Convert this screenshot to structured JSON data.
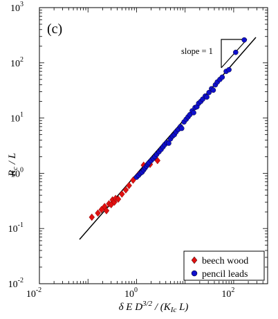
{
  "chart_data": {
    "type": "scatter",
    "panel_label": "(c)",
    "xscale": "log",
    "yscale": "log",
    "xlim": [
      0.01,
      500
    ],
    "ylim": [
      0.01,
      1000
    ],
    "x_ticks": [
      {
        "value": 0.01,
        "base": "10",
        "exp": "-2"
      },
      {
        "value": 1,
        "base": "10",
        "exp": "0"
      },
      {
        "value": 100,
        "base": "10",
        "exp": "2"
      }
    ],
    "y_ticks": [
      {
        "value": 0.01,
        "base": "10",
        "exp": "-2"
      },
      {
        "value": 0.1,
        "base": "10",
        "exp": "-1"
      },
      {
        "value": 1,
        "base": "10",
        "exp": "0"
      },
      {
        "value": 10,
        "base": "10",
        "exp": "1"
      },
      {
        "value": 100,
        "base": "10",
        "exp": "2"
      },
      {
        "value": 1000,
        "base": "10",
        "exp": "3"
      }
    ],
    "slope_annotation": "slope = 1",
    "legend_position": "bottom-right",
    "series": [
      {
        "name": "beech wood",
        "marker": "diamond",
        "color": "#e01010",
        "points": [
          [
            0.12,
            0.16
          ],
          [
            0.16,
            0.19
          ],
          [
            0.19,
            0.22
          ],
          [
            0.22,
            0.25
          ],
          [
            0.24,
            0.21
          ],
          [
            0.27,
            0.28
          ],
          [
            0.3,
            0.27
          ],
          [
            0.32,
            0.33
          ],
          [
            0.35,
            0.3
          ],
          [
            0.37,
            0.35
          ],
          [
            0.42,
            0.34
          ],
          [
            0.5,
            0.42
          ],
          [
            0.6,
            0.5
          ],
          [
            0.7,
            0.6
          ],
          [
            0.85,
            0.75
          ],
          [
            1.1,
            0.95
          ],
          [
            1.4,
            1.4
          ],
          [
            1.9,
            1.45
          ],
          [
            2.7,
            1.7
          ]
        ]
      },
      {
        "name": "pencil leads",
        "marker": "circle",
        "color": "#1010cc",
        "points": [
          [
            1.0,
            0.85
          ],
          [
            1.1,
            0.92
          ],
          [
            1.2,
            1.0
          ],
          [
            1.3,
            1.05
          ],
          [
            1.4,
            1.15
          ],
          [
            1.5,
            1.25
          ],
          [
            1.6,
            1.35
          ],
          [
            1.7,
            1.45
          ],
          [
            1.8,
            1.55
          ],
          [
            2.0,
            1.7
          ],
          [
            2.2,
            1.85
          ],
          [
            2.4,
            2.0
          ],
          [
            2.6,
            2.2
          ],
          [
            2.9,
            2.45
          ],
          [
            3.2,
            2.7
          ],
          [
            3.5,
            3.0
          ],
          [
            3.8,
            3.3
          ],
          [
            4.2,
            3.6
          ],
          [
            4.6,
            3.5
          ],
          [
            5.0,
            4.2
          ],
          [
            5.5,
            4.7
          ],
          [
            6.0,
            5.0
          ],
          [
            6.5,
            5.6
          ],
          [
            7.2,
            6.2
          ],
          [
            8.0,
            7.0
          ],
          [
            8.5,
            6.5
          ],
          [
            9.5,
            8.5
          ],
          [
            10.5,
            9.5
          ],
          [
            11.5,
            10.5
          ],
          [
            12.5,
            11.5
          ],
          [
            14.0,
            13.5
          ],
          [
            15.0,
            12.5
          ],
          [
            16.0,
            15.5
          ],
          [
            17.5,
            16.0
          ],
          [
            19.0,
            18.5
          ],
          [
            21.0,
            20.0
          ],
          [
            23.0,
            22.0
          ],
          [
            26.0,
            25.0
          ],
          [
            28.0,
            24.0
          ],
          [
            31.0,
            29.0
          ],
          [
            35.0,
            34.0
          ],
          [
            38.0,
            32.0
          ],
          [
            42.0,
            40.0
          ],
          [
            46.0,
            45.0
          ],
          [
            52.0,
            50.0
          ],
          [
            58.0,
            55.0
          ],
          [
            70.0,
            70.0
          ],
          [
            80.0,
            75.0
          ],
          [
            110.0,
            155.0
          ],
          [
            165.0,
            260.0
          ]
        ]
      }
    ]
  }
}
